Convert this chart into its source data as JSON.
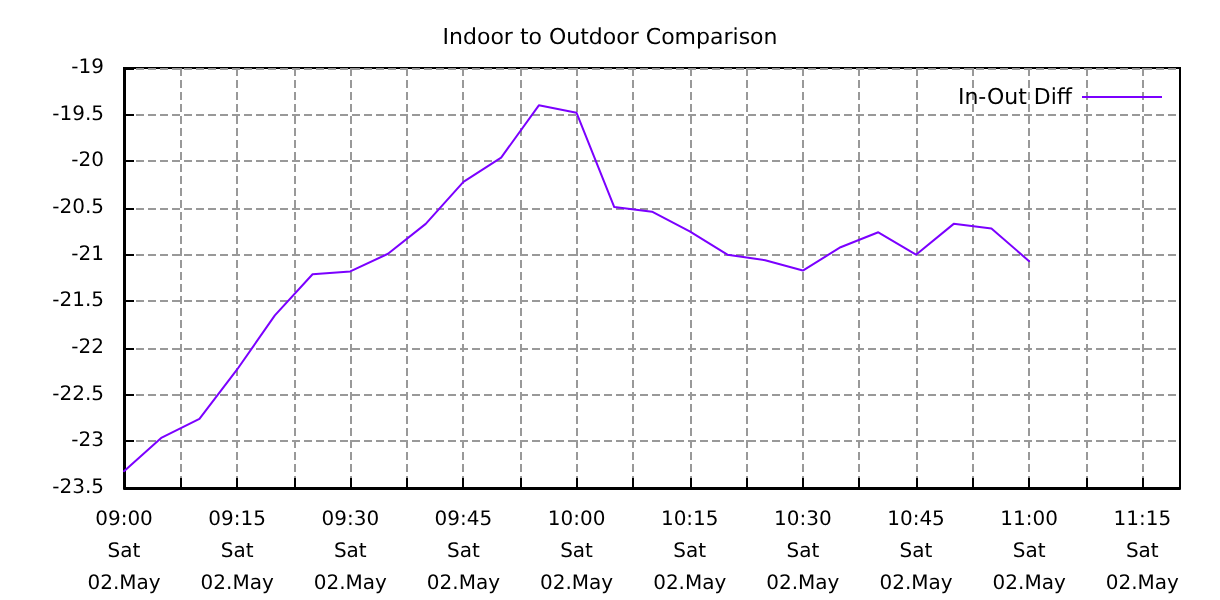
{
  "chart_data": {
    "type": "line",
    "title": "Indoor to Outdoor Comparison",
    "x": [
      "--05-02T09:00",
      "--05-02T09:05",
      "--05-02T09:10",
      "--05-02T09:15",
      "--05-02T09:20",
      "--05-02T09:25",
      "--05-02T09:30",
      "--05-02T09:35",
      "--05-02T09:40",
      "--05-02T09:45",
      "--05-02T09:50",
      "--05-02T09:55",
      "--05-02T10:00",
      "--05-02T10:05",
      "--05-02T10:10",
      "--05-02T10:15",
      "--05-02T10:20",
      "--05-02T10:25",
      "--05-02T10:30",
      "--05-02T10:35",
      "--05-02T10:40",
      "--05-02T10:45",
      "--05-02T10:50",
      "--05-02T10:55",
      "--05-02T11:00"
    ],
    "series": [
      {
        "name": "In-Out Diff",
        "color": "#7b00ff",
        "values": [
          -23.32,
          -22.96,
          -22.76,
          -22.23,
          -21.65,
          -21.21,
          -21.18,
          -20.99,
          -20.67,
          -20.22,
          -19.96,
          -19.4,
          -19.48,
          -20.49,
          -20.54,
          -20.75,
          -21.0,
          -21.06,
          -21.17,
          -20.92,
          -20.76,
          -21.0,
          -20.67,
          -20.72,
          -21.07
        ]
      }
    ],
    "xlim": [
      "--05-02T09:00",
      "--05-02T11:20"
    ],
    "xticks": [
      {
        "value": "--05-02T09:00",
        "label": "09:00\nSat\n02.May"
      },
      {
        "value": "--05-02T09:07:30",
        "label": null
      },
      {
        "value": "--05-02T09:15",
        "label": "09:15\nSat\n02.May"
      },
      {
        "value": "--05-02T09:22:30",
        "label": null
      },
      {
        "value": "--05-02T09:30",
        "label": "09:30\nSat\n02.May"
      },
      {
        "value": "--05-02T09:37:30",
        "label": null
      },
      {
        "value": "--05-02T09:45",
        "label": "09:45\nSat\n02.May"
      },
      {
        "value": "--05-02T09:52:30",
        "label": null
      },
      {
        "value": "--05-02T10:00",
        "label": "10:00\nSat\n02.May"
      },
      {
        "value": "--05-02T10:07:30",
        "label": null
      },
      {
        "value": "--05-02T10:15",
        "label": "10:15\nSat\n02.May"
      },
      {
        "value": "--05-02T10:22:30",
        "label": null
      },
      {
        "value": "--05-02T10:30",
        "label": "10:30\nSat\n02.May"
      },
      {
        "value": "--05-02T10:37:30",
        "label": null
      },
      {
        "value": "--05-02T10:45",
        "label": "10:45\nSat\n02.May"
      },
      {
        "value": "--05-02T10:52:30",
        "label": null
      },
      {
        "value": "--05-02T11:00",
        "label": "11:00\nSat\n02.May"
      },
      {
        "value": "--05-02T11:07:30",
        "label": null
      },
      {
        "value": "--05-02T11:15",
        "label": "11:15\nSat\n02.May"
      }
    ],
    "ylim": [
      -23.5,
      -19
    ],
    "yticks": [
      -23.5,
      -23,
      -22.5,
      -22,
      -21.5,
      -21,
      -20.5,
      -20,
      -19.5,
      -19
    ],
    "grid": true,
    "legend": "top right",
    "marker": "none",
    "line_style": "solid"
  }
}
